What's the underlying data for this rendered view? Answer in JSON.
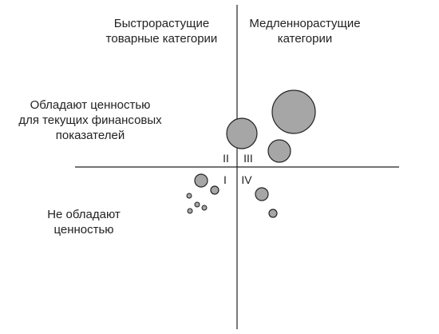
{
  "labels": {
    "fast_growing": "Быстрорастущие\nтоварные категории",
    "slow_growing": "Медленнорастущие\nкатегории",
    "valuable": "Обладают ценностью\nдля текущих финансовых\nпоказателей",
    "not_valuable": "Не обладают\nценностью"
  },
  "quadrants": {
    "q1": "I",
    "q2": "II",
    "q3": "III",
    "q4": "IV"
  },
  "colors": {
    "bubble_fill": "#a6a6a6",
    "bubble_stroke": "#222222",
    "axis": "#222222"
  }
}
